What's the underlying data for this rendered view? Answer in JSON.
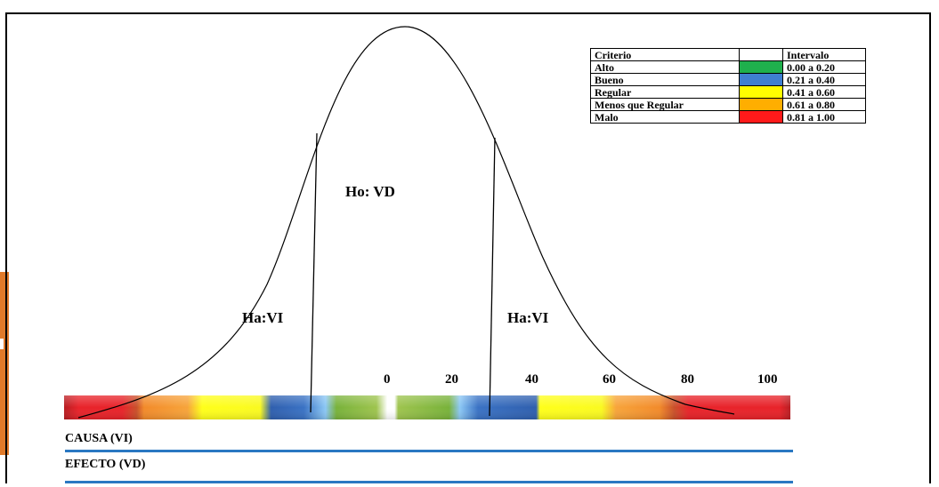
{
  "legend": {
    "header": {
      "criterio": "Criterio",
      "color": "",
      "intervalo": "Intervalo"
    },
    "rows": [
      {
        "criterio": "Alto",
        "color": "#1fb04d",
        "intervalo": "0.00 a 0.20"
      },
      {
        "criterio": "Bueno",
        "color": "#3f7fd0",
        "intervalo": "0.21 a 0.40"
      },
      {
        "criterio": "Regular",
        "color": "#ffff00",
        "intervalo": "0.41 a 0.60"
      },
      {
        "criterio": "Menos que Regular",
        "color": "#ffae00",
        "intervalo": "0.61 a 0.80"
      },
      {
        "criterio": "Malo",
        "color": "#ff1a1a",
        "intervalo": "0.81 a 1.00"
      }
    ]
  },
  "curve_labels": {
    "center": "Ho: VD",
    "left": "Ha:VI",
    "right": "Ha:VI"
  },
  "scale": {
    "ticks": [
      "0",
      "20",
      "40",
      "60",
      "80",
      "100"
    ]
  },
  "bar_colors": {
    "red": "#e8232a",
    "orange": "#f28a2a",
    "yellow": "#ffff1a",
    "blue": "#3a72c4",
    "green": "#8fb841"
  },
  "bottom": {
    "causa": "CAUSA (VI)",
    "efecto": "EFECTO (VD)",
    "line_color": "#2a78c2"
  }
}
